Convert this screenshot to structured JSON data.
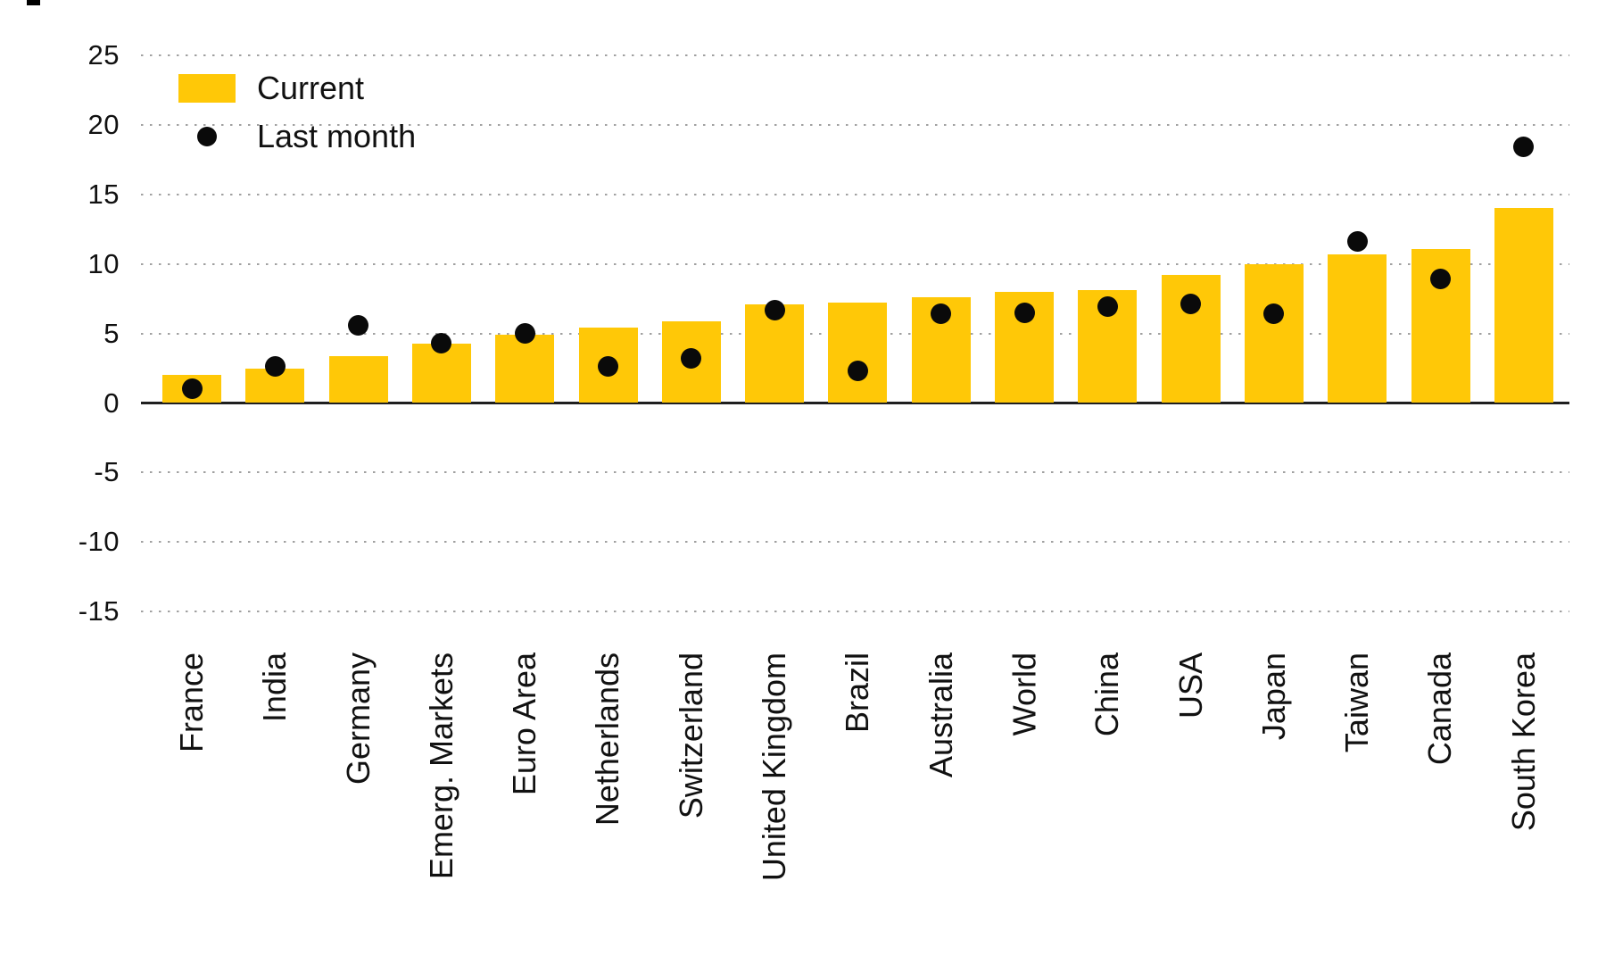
{
  "legend": {
    "current_label": "Current",
    "last_month_label": "Last month"
  },
  "colors": {
    "bar": "#FFC807",
    "dot": "#0a0a0a",
    "gridline": "#a0a0a0",
    "axis_line": "#1f1f1f",
    "text": "#111111"
  },
  "chart_data": {
    "type": "bar",
    "title": "",
    "xlabel": "",
    "ylabel": "",
    "categories": [
      "France",
      "India",
      "Germany",
      "Emerg. Markets",
      "Euro Area",
      "Netherlands",
      "Switzerland",
      "United Kingdom",
      "Brazil",
      "Australia",
      "World",
      "China",
      "USA",
      "Japan",
      "Taiwan",
      "Canada",
      "South Korea"
    ],
    "series": [
      {
        "name": "Current",
        "type": "bar",
        "values": [
          2.0,
          2.5,
          3.4,
          4.3,
          4.9,
          5.4,
          5.9,
          7.1,
          7.2,
          7.6,
          8.0,
          8.1,
          9.2,
          10.0,
          10.7,
          11.1,
          14.0
        ]
      },
      {
        "name": "Last month",
        "type": "scatter",
        "values": [
          1.0,
          2.6,
          5.6,
          4.3,
          5.0,
          2.6,
          3.2,
          6.7,
          2.3,
          6.4,
          6.5,
          6.9,
          7.1,
          6.4,
          11.6,
          8.9,
          18.4
        ]
      }
    ],
    "ylim": [
      -15,
      25
    ],
    "yticks": [
      25,
      20,
      15,
      10,
      5,
      0,
      -5,
      -10,
      -15
    ],
    "grid": "horizontal-dotted",
    "legend_position": "top-left"
  }
}
